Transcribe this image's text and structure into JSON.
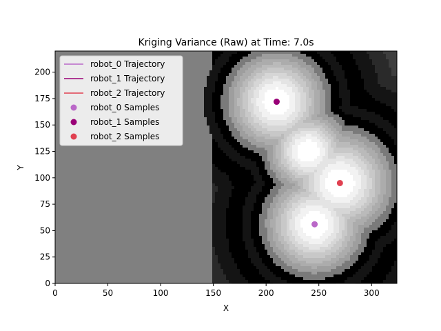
{
  "chart_data": {
    "type": "heatmap",
    "title": "Kriging Variance (Raw) at Time: 7.0s",
    "xlabel": "X",
    "ylabel": "Y",
    "xlim": [
      0,
      324
    ],
    "ylim": [
      0,
      220
    ],
    "xticks": [
      0,
      50,
      100,
      150,
      200,
      250,
      300
    ],
    "yticks": [
      0,
      25,
      50,
      75,
      100,
      125,
      150,
      175,
      200
    ],
    "colormap": "grayscale-filled-contours",
    "legend_position": "upper-left",
    "legend": [
      {
        "label": "robot_0 Trajectory",
        "kind": "line",
        "color": "#ba68c8"
      },
      {
        "label": "robot_1 Trajectory",
        "kind": "line",
        "color": "#990077"
      },
      {
        "label": "robot_2 Trajectory",
        "kind": "line",
        "color": "#e04050"
      },
      {
        "label": "robot_0 Samples",
        "kind": "marker",
        "color": "#ba68c8"
      },
      {
        "label": "robot_1 Samples",
        "kind": "marker",
        "color": "#990077"
      },
      {
        "label": "robot_2 Samples",
        "kind": "marker",
        "color": "#e04050"
      }
    ],
    "samples": [
      {
        "series": "robot_0 Samples",
        "x": 246,
        "y": 56,
        "color": "#ba68c8"
      },
      {
        "series": "robot_1 Samples",
        "x": 210,
        "y": 172,
        "color": "#990077"
      },
      {
        "series": "robot_2 Samples",
        "x": 270,
        "y": 95,
        "color": "#e04050"
      }
    ]
  }
}
